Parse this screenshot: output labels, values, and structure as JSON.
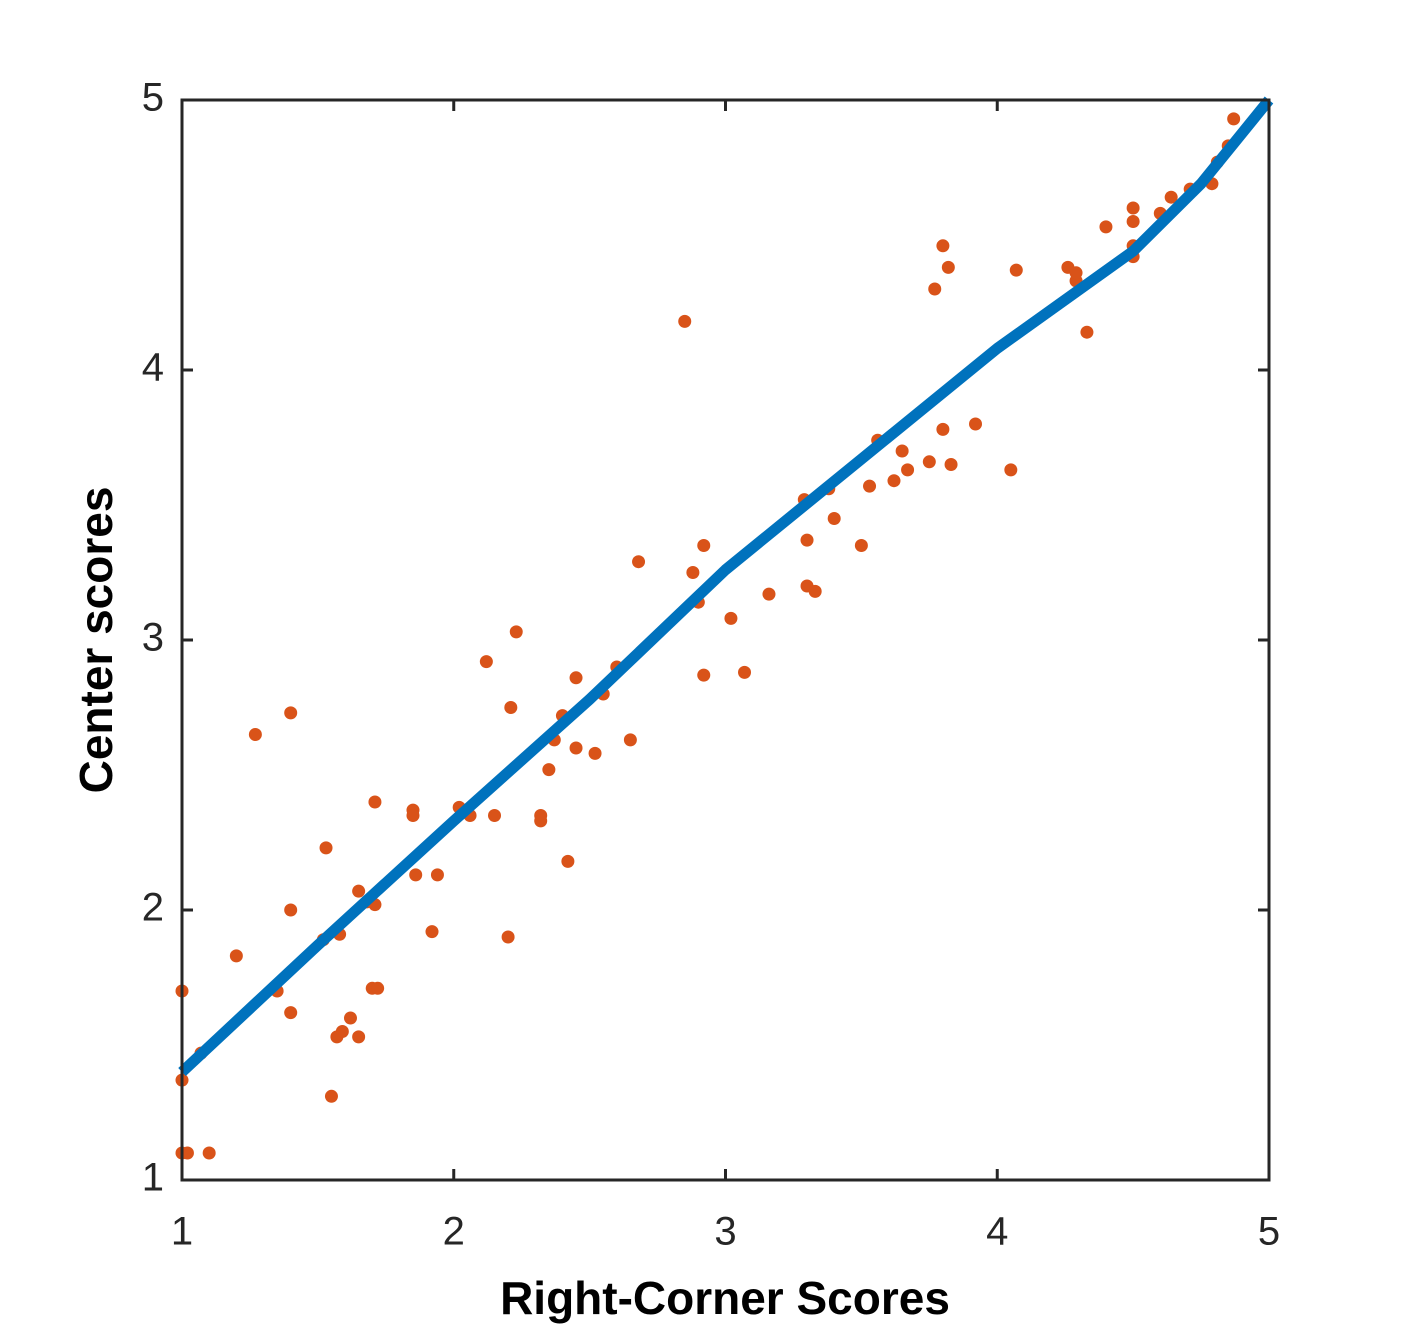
{
  "chart_data": {
    "type": "scatter",
    "xlabel": "Right-Corner Scores",
    "ylabel": "Center scores",
    "xlim": [
      1,
      5
    ],
    "ylim": [
      1,
      5
    ],
    "xticks": [
      1,
      2,
      3,
      4,
      5
    ],
    "yticks": [
      1,
      2,
      3,
      4,
      5
    ],
    "grid": false,
    "box": true,
    "series": [
      {
        "type": "scatter",
        "color": "#d95319",
        "x": [
          1.0,
          1.0,
          1.0,
          1.02,
          1.1,
          1.07,
          1.2,
          1.27,
          1.35,
          1.4,
          1.4,
          1.4,
          1.52,
          1.53,
          1.55,
          1.57,
          1.58,
          1.59,
          1.62,
          1.65,
          1.65,
          1.68,
          1.7,
          1.71,
          1.71,
          1.72,
          1.85,
          1.85,
          1.86,
          1.92,
          1.94,
          2.02,
          2.06,
          2.12,
          2.15,
          2.2,
          2.21,
          2.23,
          2.32,
          2.32,
          2.35,
          2.37,
          2.4,
          2.42,
          2.45,
          2.45,
          2.52,
          2.55,
          2.6,
          2.65,
          2.68,
          2.85,
          2.88,
          2.9,
          2.92,
          2.92,
          3.02,
          3.07,
          3.16,
          3.29,
          3.3,
          3.3,
          3.33,
          3.38,
          3.4,
          3.5,
          3.53,
          3.56,
          3.62,
          3.65,
          3.67,
          3.75,
          3.77,
          3.8,
          3.8,
          3.82,
          3.83,
          3.92,
          4.05,
          4.07,
          4.26,
          4.29,
          4.29,
          4.33,
          4.4,
          4.5,
          4.5,
          4.5,
          4.5,
          4.6,
          4.64,
          4.71,
          4.79,
          4.81,
          4.85,
          4.87
        ],
        "values": [
          1.7,
          1.37,
          1.1,
          1.1,
          1.1,
          1.47,
          1.83,
          2.65,
          1.7,
          2.73,
          2.0,
          1.62,
          1.89,
          2.23,
          1.31,
          1.53,
          1.91,
          1.55,
          1.6,
          2.07,
          1.53,
          2.03,
          1.71,
          2.4,
          2.02,
          1.71,
          2.37,
          2.35,
          2.13,
          1.92,
          2.13,
          2.38,
          2.35,
          2.92,
          2.35,
          1.9,
          2.75,
          3.03,
          2.35,
          2.33,
          2.52,
          2.63,
          2.72,
          2.18,
          2.86,
          2.6,
          2.58,
          2.8,
          2.9,
          2.63,
          3.29,
          4.18,
          3.25,
          3.14,
          3.35,
          2.87,
          3.08,
          2.88,
          3.17,
          3.52,
          3.37,
          3.2,
          3.18,
          3.56,
          3.45,
          3.35,
          3.57,
          3.74,
          3.59,
          3.7,
          3.63,
          3.66,
          4.3,
          4.46,
          3.78,
          4.38,
          3.65,
          3.8,
          3.63,
          4.37,
          4.38,
          4.33,
          4.36,
          4.14,
          4.53,
          4.6,
          4.55,
          4.46,
          4.42,
          4.58,
          4.64,
          4.67,
          4.69,
          4.77,
          4.83,
          4.93
        ]
      },
      {
        "type": "line",
        "color": "#0072bd",
        "x": [
          1.0,
          1.5,
          2.0,
          2.5,
          3.0,
          3.5,
          4.0,
          4.5,
          4.75,
          5.0
        ],
        "values": [
          1.4,
          1.87,
          2.33,
          2.78,
          3.26,
          3.67,
          4.08,
          4.44,
          4.69,
          5.0
        ]
      }
    ]
  }
}
